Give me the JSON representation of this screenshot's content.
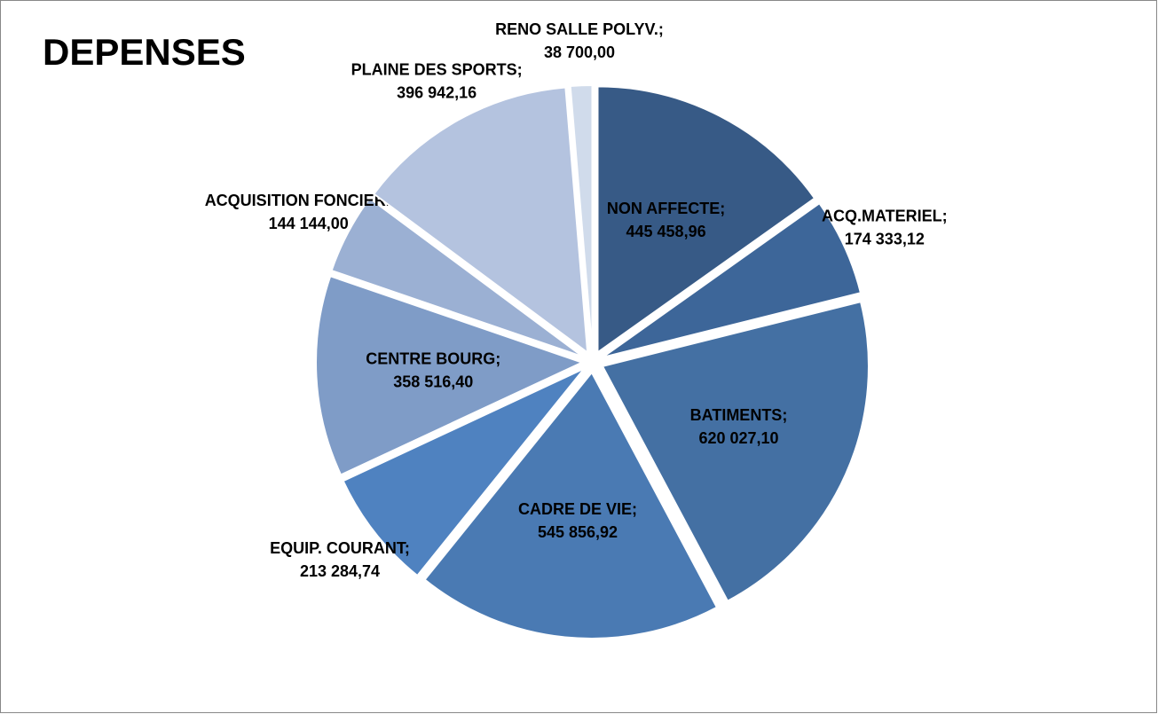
{
  "chart_data": {
    "type": "pie",
    "title": "DEPENSES",
    "categories": [
      "NON AFFECTE;",
      "ACQ.MATERIEL;",
      "BATIMENTS;",
      "CADRE DE VIE;",
      "EQUIP. COURANT;",
      "CENTRE BOURG;",
      "ACQUISITION FONCIERES;",
      "PLAINE DES SPORTS;",
      "RENO SALLE POLYV.;"
    ],
    "values": [
      445458.96,
      174333.12,
      620027.1,
      545856.92,
      213284.74,
      358516.4,
      144144.0,
      396942.16,
      38700.0
    ],
    "value_labels": [
      "445 458,96",
      "174 333,12",
      "620 027,10",
      "545 856,92",
      "213 284,74",
      "358 516,40",
      "144 144,00",
      "396 942,16",
      "38 700,00"
    ],
    "colors": [
      "#375a86",
      "#3d6699",
      "#4470a3",
      "#4a7ab3",
      "#4f82c0",
      "#7f9cc7",
      "#9bb0d3",
      "#b4c3df",
      "#d0dbeb"
    ]
  }
}
